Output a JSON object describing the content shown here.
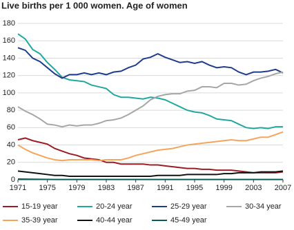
{
  "chart_data": {
    "type": "line",
    "title": "Live births per 1 000 women. Age of women",
    "x": [
      1971,
      1972,
      1973,
      1974,
      1975,
      1976,
      1977,
      1978,
      1979,
      1980,
      1981,
      1982,
      1983,
      1984,
      1985,
      1986,
      1987,
      1988,
      1989,
      1990,
      1991,
      1992,
      1993,
      1994,
      1995,
      1996,
      1997,
      1998,
      1999,
      2000,
      2001,
      2002,
      2003,
      2004,
      2005,
      2006,
      2007
    ],
    "xlim": [
      1971,
      2007
    ],
    "xticks": [
      1971,
      1975,
      1979,
      1983,
      1987,
      1991,
      1995,
      1999,
      2003,
      2007
    ],
    "ylim": [
      0,
      180
    ],
    "yticks": [
      0,
      20,
      40,
      60,
      80,
      100,
      120,
      140,
      160,
      180
    ],
    "grid": true,
    "series": [
      {
        "name": "15-19 year",
        "color": "#9b1d24",
        "values": [
          46,
          48,
          45,
          43,
          41,
          36,
          33,
          30,
          28,
          25,
          24,
          23,
          20,
          20,
          18,
          18,
          18,
          18,
          17,
          17,
          16,
          15,
          14,
          13,
          13,
          12,
          12,
          11,
          11,
          11,
          10,
          9,
          8,
          8,
          8,
          8,
          9
        ]
      },
      {
        "name": "20-24 year",
        "color": "#20a8a0",
        "values": [
          168,
          162,
          150,
          145,
          135,
          127,
          118,
          115,
          114,
          113,
          109,
          107,
          105,
          98,
          95,
          95,
          94,
          93,
          95,
          94,
          92,
          88,
          84,
          80,
          78,
          77,
          74,
          70,
          69,
          68,
          64,
          60,
          59,
          60,
          59,
          61,
          61
        ]
      },
      {
        "name": "25-29 year",
        "color": "#1f3c8c",
        "values": [
          152,
          149,
          140,
          136,
          129,
          122,
          117,
          121,
          121,
          123,
          121,
          123,
          121,
          124,
          125,
          129,
          132,
          139,
          141,
          145,
          141,
          138,
          135,
          136,
          134,
          136,
          132,
          129,
          130,
          129,
          124,
          121,
          124,
          124,
          125,
          127,
          123
        ]
      },
      {
        "name": "30-34 year",
        "color": "#a6a6a6",
        "values": [
          84,
          79,
          75,
          70,
          64,
          63,
          61,
          63,
          62,
          63,
          63,
          65,
          68,
          69,
          71,
          75,
          80,
          85,
          92,
          96,
          98,
          99,
          99,
          102,
          103,
          107,
          107,
          106,
          111,
          111,
          109,
          110,
          114,
          117,
          119,
          122,
          124
        ]
      },
      {
        "name": "35-39 year",
        "color": "#f5a55a",
        "values": [
          40,
          35,
          31,
          28,
          25,
          23,
          22,
          23,
          23,
          23,
          23,
          22,
          23,
          23,
          23,
          25,
          28,
          30,
          32,
          34,
          35,
          36,
          38,
          40,
          41,
          42,
          43,
          44,
          45,
          46,
          45,
          45,
          47,
          49,
          49,
          52,
          55
        ]
      },
      {
        "name": "40-44 year",
        "color": "#111111",
        "values": [
          10,
          9,
          8,
          7,
          6,
          5,
          5,
          4,
          4,
          4,
          4,
          4,
          4,
          4,
          4,
          4,
          4,
          4,
          4,
          5,
          5,
          5,
          5,
          6,
          6,
          6,
          6,
          6,
          7,
          7,
          8,
          8,
          8,
          9,
          9,
          9,
          10
        ]
      },
      {
        "name": "45-49 year",
        "color": "#0a5a5a",
        "values": [
          0.8,
          0.7,
          0.6,
          0.5,
          0.4,
          0.3,
          0.3,
          0.3,
          0.3,
          0.3,
          0.3,
          0.3,
          0.3,
          0.3,
          0.3,
          0.3,
          0.3,
          0.3,
          0.3,
          0.3,
          0.3,
          0.3,
          0.3,
          0.3,
          0.3,
          0.3,
          0.3,
          0.3,
          0.3,
          0.3,
          0.3,
          0.3,
          0.3,
          0.3,
          0.3,
          0.3,
          0.3
        ]
      }
    ]
  }
}
